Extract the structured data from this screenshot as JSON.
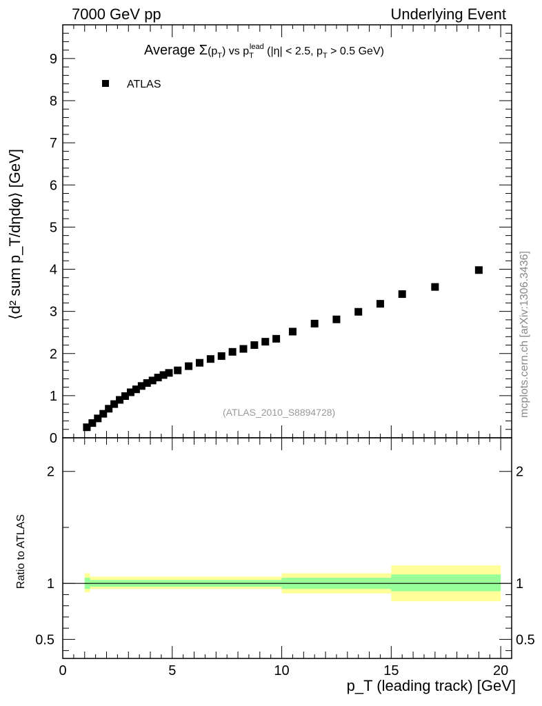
{
  "header": {
    "left": "7000 GeV pp",
    "right": "Underlying Event"
  },
  "plot_title": {
    "prefix": "Average ",
    "sigma": "Σ",
    "arg": "(p",
    "arg_sub": "T",
    "arg_close": ")",
    "vs": " vs p",
    "vs_sub": "T",
    "vs_sup": "lead",
    "cuts": " (|η| < 2.5, p",
    "cuts_sub": "T",
    "cuts_end": " > 0.5 GeV)"
  },
  "y_axis_label": "⟨d² sum p_T/dηdφ⟩ [GeV]",
  "ratio_axis_label": "Ratio to ATLAS",
  "x_axis_label": "p_T (leading track) [GeV]",
  "side_label": "mcplots.cern.ch [arXiv:1306.3436]",
  "analysis_label": "(ATLAS_2010_S8894728)",
  "legend": {
    "label": "ATLAS"
  },
  "colors": {
    "marker": "#000000",
    "band_inner": "#99ff99",
    "band_outer": "#ffff99",
    "ratio_line": "#000000"
  },
  "chart_data": [
    {
      "type": "scatter",
      "series": [
        {
          "name": "ATLAS",
          "x": [
            1.1,
            1.35,
            1.6,
            1.85,
            2.1,
            2.35,
            2.6,
            2.85,
            3.1,
            3.35,
            3.6,
            3.85,
            4.1,
            4.35,
            4.6,
            4.85,
            5.25,
            5.75,
            6.25,
            6.75,
            7.25,
            7.75,
            8.25,
            8.75,
            9.25,
            9.75,
            10.5,
            11.5,
            12.5,
            13.5,
            14.5,
            15.5,
            17.0,
            19.0
          ],
          "y": [
            0.25,
            0.35,
            0.46,
            0.57,
            0.69,
            0.8,
            0.9,
            0.99,
            1.08,
            1.15,
            1.23,
            1.3,
            1.36,
            1.43,
            1.49,
            1.54,
            1.6,
            1.7,
            1.78,
            1.87,
            1.94,
            2.04,
            2.11,
            2.2,
            2.28,
            2.35,
            2.52,
            2.71,
            2.81,
            2.99,
            3.18,
            3.41,
            3.58,
            3.98
          ]
        }
      ],
      "xlim": [
        0,
        20.5
      ],
      "ylim": [
        0,
        9.8
      ],
      "y_ticks": [
        1,
        2,
        3,
        4,
        5,
        6,
        7,
        8,
        9
      ],
      "ylabel": "⟨d² sum p_T/dηdφ⟩ [GeV]",
      "legend_position": "top-left",
      "grid": false
    },
    {
      "type": "area",
      "xlabel": "p_T (leading track) [GeV]",
      "ylabel": "Ratio to ATLAS",
      "xlim": [
        0,
        20.5
      ],
      "ylim": [
        0.33,
        2.3
      ],
      "x_ticks": [
        0,
        5,
        10,
        15,
        20
      ],
      "y_ticks": [
        0.5,
        1,
        2
      ],
      "reference": 1,
      "bands": [
        {
          "x": [
            1.0,
            1.25,
            10.0,
            10.0,
            15.0,
            15.0,
            20.0
          ],
          "inner_low": [
            0.95,
            0.97,
            0.97,
            0.95,
            0.95,
            0.93,
            0.93
          ],
          "inner_high": [
            1.05,
            1.03,
            1.03,
            1.05,
            1.05,
            1.08,
            1.08
          ],
          "outer_low": [
            0.92,
            0.95,
            0.95,
            0.91,
            0.91,
            0.84,
            0.83
          ],
          "outer_high": [
            1.09,
            1.06,
            1.06,
            1.09,
            1.09,
            1.16,
            1.17
          ]
        }
      ]
    }
  ]
}
